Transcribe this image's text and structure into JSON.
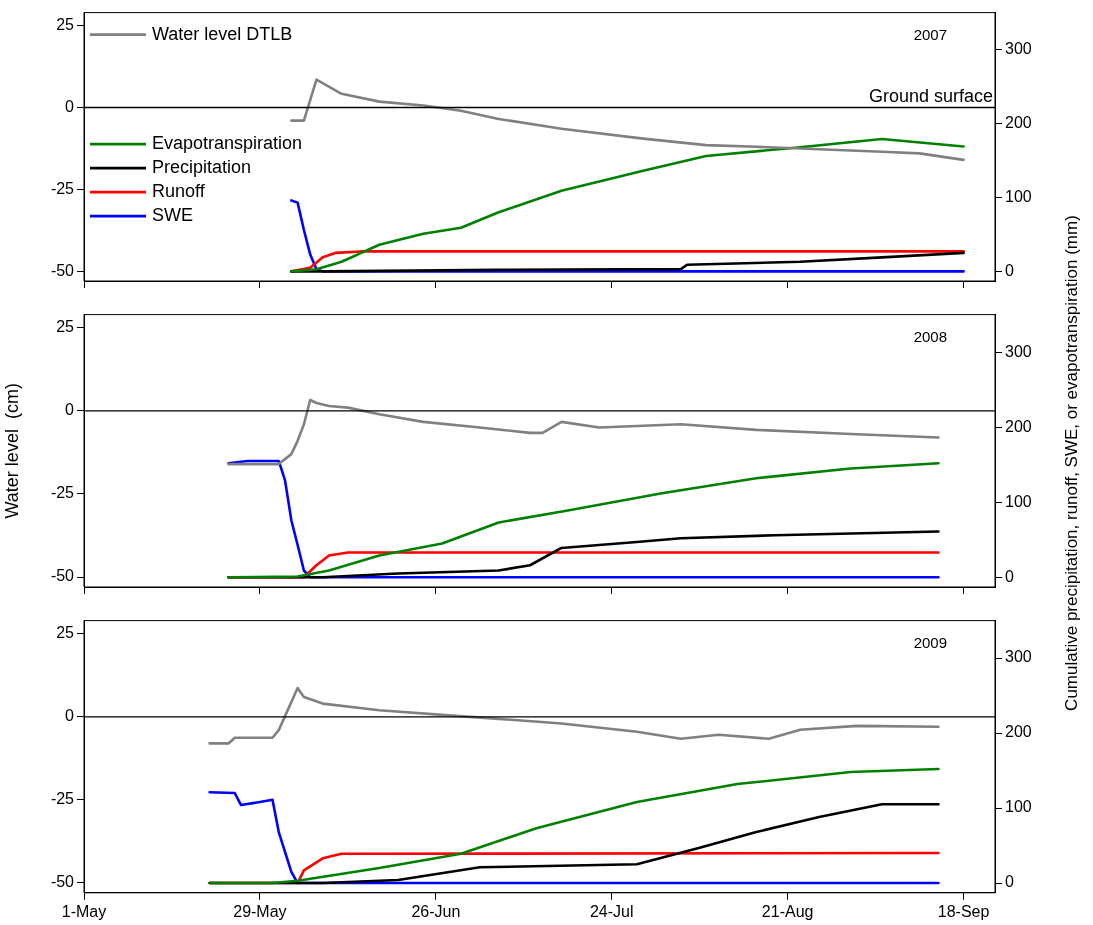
{
  "chart_data": [
    {
      "type": "line",
      "annotations": [
        "2007"
      ],
      "legend": "top left",
      "tick_labels": "y",
      "xlim": [
        "--05-01",
        "--09-23"
      ],
      "xticks": [
        {
          "value": "--05-01",
          "label": "1-May"
        },
        {
          "value": "--05-29",
          "label": "29-May"
        },
        {
          "value": "--06-26",
          "label": "26-Jun"
        },
        {
          "value": "--07-24",
          "label": "24-Jul"
        },
        {
          "value": "--08-21",
          "label": "21-Aug"
        },
        {
          "value": "--09-18",
          "label": "18-Sep"
        }
      ],
      "ylim": [
        -53,
        29
      ],
      "yticks": [
        -50,
        -25,
        0,
        25
      ],
      "y2lim": [
        -13,
        350
      ],
      "y2ticks": [
        0,
        100,
        200,
        300
      ],
      "ref_lines": [
        {
          "axis": "y",
          "value": 0,
          "label": "Ground surface",
          "color": "#000000"
        }
      ],
      "series": [
        {
          "name": "Water level DTLB",
          "color": "#808080",
          "x": [
            "--06-03",
            "--06-05",
            "--06-07",
            "--06-11",
            "--06-17",
            "--06-24",
            "--06-30",
            "--07-06",
            "--07-16",
            "--07-29",
            "--08-08",
            "--08-16",
            "--08-23",
            "--09-05",
            "--09-11",
            "--09-18"
          ],
          "values": [
            -4,
            -4,
            8.5,
            4.2,
            1.8,
            0.6,
            -1,
            -3.5,
            -6.5,
            -9.5,
            -11.5,
            -12,
            -12.5,
            -13.5,
            -14,
            -16
          ]
        },
        {
          "name": "Evapotranspiration",
          "color": "#008000",
          "axis": "y2",
          "x": [
            "--06-03",
            "--06-07",
            "--06-11",
            "--06-17",
            "--06-24",
            "--06-30",
            "--07-06",
            "--07-16",
            "--07-29",
            "--08-08",
            "--08-23",
            "--09-05",
            "--09-18"
          ],
          "values": [
            0,
            3,
            13,
            36,
            51,
            59,
            80,
            109,
            136,
            156,
            168,
            179,
            169
          ]
        },
        {
          "name": "Precipitation",
          "color": "#000000",
          "axis": "y2",
          "x": [
            "--06-03",
            "--06-08",
            "--07-06",
            "--08-04",
            "--08-05",
            "--08-23",
            "--09-05",
            "--09-18"
          ],
          "values": [
            0,
            0,
            2,
            3,
            9,
            13,
            19,
            25
          ]
        },
        {
          "name": "Runoff",
          "color": "#ff0000",
          "axis": "y2",
          "x": [
            "--06-03",
            "--06-06",
            "--06-08",
            "--06-10",
            "--06-14",
            "--09-18"
          ],
          "values": [
            0,
            5,
            19,
            25,
            27,
            27
          ]
        },
        {
          "name": "SWE",
          "color": "#0000ff",
          "axis": "y2",
          "x": [
            "--06-03",
            "--06-04",
            "--06-05",
            "--06-06",
            "--06-07",
            "--06-08",
            "--09-18"
          ],
          "values": [
            96,
            93,
            56,
            23,
            3,
            0,
            0
          ]
        }
      ]
    },
    {
      "type": "line",
      "annotations": [
        "2008"
      ],
      "tick_labels": "y",
      "ylabel": "Water level  (cm)",
      "y2label": "Cumulative precipitation,  runoff,  SWE,  or evapotranspiration  (mm)",
      "xlim": [
        "--05-01",
        "--09-23"
      ],
      "xticks": [
        {
          "value": "--05-01",
          "label": "1-May"
        },
        {
          "value": "--05-29",
          "label": "29-May"
        },
        {
          "value": "--06-26",
          "label": "26-Jun"
        },
        {
          "value": "--07-24",
          "label": "24-Jul"
        },
        {
          "value": "--08-21",
          "label": "21-Aug"
        },
        {
          "value": "--09-18",
          "label": "18-Sep"
        }
      ],
      "ylim": [
        -53,
        29
      ],
      "yticks": [
        -50,
        -25,
        0,
        25
      ],
      "y2lim": [
        -13,
        350
      ],
      "y2ticks": [
        0,
        100,
        200,
        300
      ],
      "ref_lines": [
        {
          "axis": "y",
          "value": 0,
          "color": "#000000"
        }
      ],
      "series": [
        {
          "color": "#808080",
          "x": [
            "--05-24",
            "--06-01",
            "--06-03",
            "--06-04",
            "--06-05",
            "--06-06",
            "--06-07",
            "--06-09",
            "--06-12",
            "--06-17",
            "--06-24",
            "--07-03",
            "--07-11",
            "--07-13",
            "--07-16",
            "--07-22",
            "--08-04",
            "--08-16",
            "--09-01",
            "--09-14"
          ],
          "values": [
            -16,
            -16,
            -13,
            -9,
            -4,
            3.3,
            2.4,
            1.5,
            1,
            -1,
            -3.3,
            -5,
            -6.6,
            -6.6,
            -3.3,
            -5,
            -4,
            -5.7,
            -7,
            -8
          ]
        },
        {
          "color": "#008000",
          "axis": "y2",
          "x": [
            "--05-24",
            "--06-04",
            "--06-09",
            "--06-17",
            "--06-27",
            "--07-06",
            "--07-17",
            "--08-01",
            "--08-16",
            "--08-31",
            "--09-14"
          ],
          "values": [
            0,
            1,
            9,
            29,
            45,
            73,
            89,
            112,
            132,
            145,
            152
          ]
        },
        {
          "color": "#000000",
          "axis": "y2",
          "x": [
            "--05-24",
            "--06-08",
            "--06-20",
            "--07-06",
            "--07-11",
            "--07-16",
            "--07-28",
            "--08-04",
            "--08-19",
            "--09-14"
          ],
          "values": [
            0,
            0,
            5,
            9,
            16,
            39,
            47,
            52,
            56,
            61
          ]
        },
        {
          "color": "#ff0000",
          "axis": "y2",
          "x": [
            "--05-24",
            "--06-05",
            "--06-07",
            "--06-09",
            "--06-12",
            "--09-14"
          ],
          "values": [
            0,
            0,
            16,
            29,
            33,
            33
          ]
        },
        {
          "color": "#0000ff",
          "axis": "y2",
          "x": [
            "--05-24",
            "--05-27",
            "--06-01",
            "--06-02",
            "--06-03",
            "--06-04",
            "--06-05",
            "--06-06",
            "--09-14"
          ],
          "values": [
            152,
            155,
            155,
            129,
            76,
            43,
            9,
            0,
            0
          ]
        }
      ]
    },
    {
      "type": "line",
      "annotations": [
        "2009"
      ],
      "xlim": [
        "--05-01",
        "--09-23"
      ],
      "xticks": [
        {
          "value": "--05-01",
          "label": "1-May"
        },
        {
          "value": "--05-29",
          "label": "29-May"
        },
        {
          "value": "--06-26",
          "label": "26-Jun"
        },
        {
          "value": "--07-24",
          "label": "24-Jul"
        },
        {
          "value": "--08-21",
          "label": "21-Aug"
        },
        {
          "value": "--09-18",
          "label": "18-Sep"
        }
      ],
      "ylim": [
        -53,
        29
      ],
      "yticks": [
        -50,
        -25,
        0,
        25
      ],
      "y2lim": [
        -13,
        350
      ],
      "y2ticks": [
        0,
        100,
        200,
        300
      ],
      "ref_lines": [
        {
          "axis": "y",
          "value": 0,
          "color": "#000000"
        }
      ],
      "series": [
        {
          "color": "#808080",
          "x": [
            "--05-21",
            "--05-24",
            "--05-25",
            "--05-31",
            "--06-01",
            "--06-03",
            "--06-04",
            "--06-05",
            "--06-08",
            "--06-17",
            "--06-27",
            "--07-06",
            "--07-16",
            "--07-28",
            "--08-04",
            "--08-10",
            "--08-18",
            "--08-23",
            "--09-01",
            "--09-14"
          ],
          "values": [
            -8,
            -8,
            -6.3,
            -6.3,
            -4,
            4.5,
            8.7,
            6,
            4,
            2,
            0.6,
            -0.6,
            -2,
            -4.5,
            -6.6,
            -5.4,
            -6.6,
            -3.9,
            -2.7,
            -3
          ]
        },
        {
          "color": "#008000",
          "axis": "y2",
          "x": [
            "--05-21",
            "--05-31",
            "--06-04",
            "--06-17",
            "--06-30",
            "--07-12",
            "--07-28",
            "--08-13",
            "--08-31",
            "--09-14"
          ],
          "values": [
            0,
            0,
            3,
            20,
            39,
            73,
            108,
            132,
            148,
            152
          ]
        },
        {
          "color": "#000000",
          "axis": "y2",
          "x": [
            "--05-21",
            "--06-08",
            "--06-20",
            "--07-03",
            "--07-28",
            "--08-07",
            "--08-16",
            "--08-26",
            "--09-05",
            "--09-14"
          ],
          "values": [
            0,
            0,
            4,
            21,
            25,
            47,
            68,
            88,
            105,
            105
          ]
        },
        {
          "color": "#ff0000",
          "axis": "y2",
          "x": [
            "--05-21",
            "--06-04",
            "--06-05",
            "--06-08",
            "--06-11",
            "--09-14"
          ],
          "values": [
            0,
            0,
            17,
            33,
            39,
            40
          ]
        },
        {
          "color": "#0000ff",
          "axis": "y2",
          "x": [
            "--05-21",
            "--05-25",
            "--05-26",
            "--05-29",
            "--05-31",
            "--06-01",
            "--06-03",
            "--06-04",
            "--09-14"
          ],
          "values": [
            121,
            120,
            104,
            108,
            111,
            68,
            15,
            0,
            0
          ]
        }
      ]
    }
  ]
}
